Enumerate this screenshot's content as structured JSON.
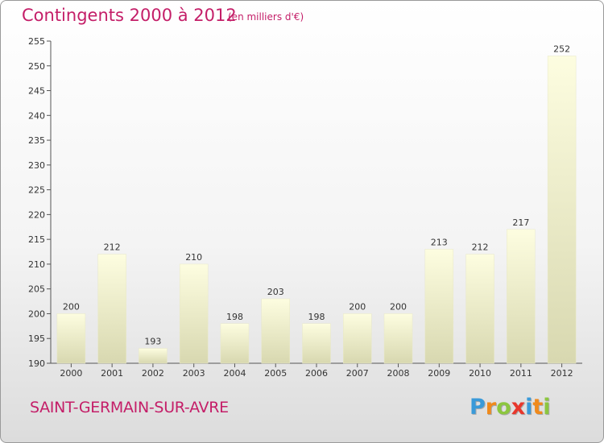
{
  "chart_data": {
    "type": "bar",
    "title": "Contingents 2000 à 2012",
    "subtitle": "(en milliers d'€)",
    "categories": [
      "2000",
      "2001",
      "2002",
      "2003",
      "2004",
      "2005",
      "2006",
      "2007",
      "2008",
      "2009",
      "2010",
      "2011",
      "2012"
    ],
    "values": [
      200,
      212,
      193,
      210,
      198,
      203,
      198,
      200,
      200,
      213,
      212,
      217,
      252
    ],
    "ylim": [
      190,
      255
    ],
    "yticks": [
      190,
      195,
      200,
      205,
      210,
      215,
      220,
      225,
      230,
      235,
      240,
      245,
      250,
      255
    ],
    "grid": false,
    "legend": "none",
    "colors": {
      "title": "#c41e68",
      "bar_light": "#fdfde0",
      "bar_dark": "#d8d8b0",
      "axis": "#555555"
    }
  },
  "footer": {
    "commune": "SAINT-GERMAIN-SUR-AVRE"
  },
  "logo": {
    "letters": [
      "P",
      "r",
      "o",
      "x",
      "i",
      "t",
      "i"
    ],
    "colors": [
      "#3a9ad9",
      "#f08a1c",
      "#8cc63f",
      "#e8372c",
      "#3a9ad9",
      "#f08a1c",
      "#8cc63f"
    ]
  }
}
